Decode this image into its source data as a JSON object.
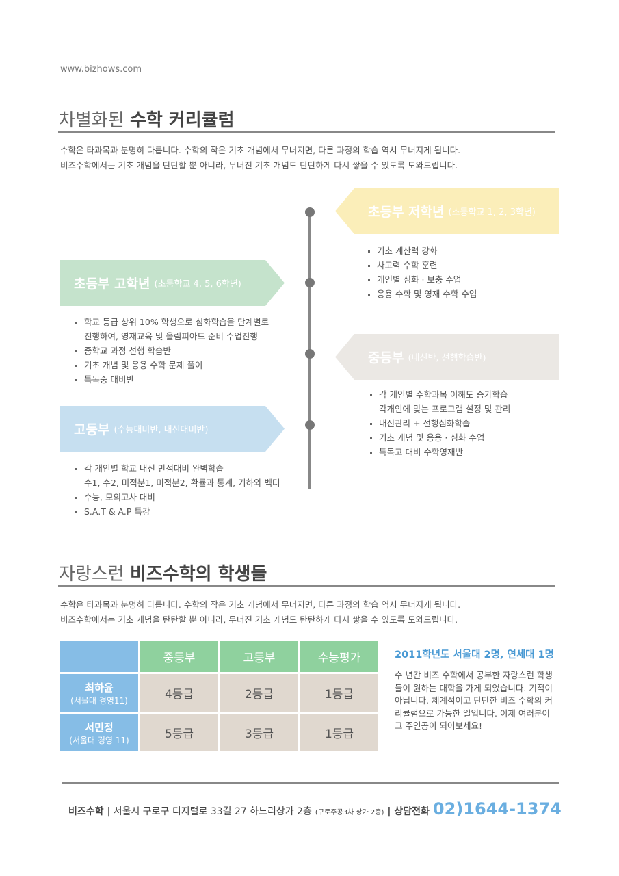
{
  "header": {
    "url": "www.bizhows.com"
  },
  "curriculum": {
    "title_light": "차별화된",
    "title_bold": "수학 커리큘럼",
    "intro": [
      "수학은 타과목과 분명히 다릅니다. 수학의 작은 기초 개념에서 무너지면, 다른 과정의 학습 역시 무너지게 됩니다.",
      "비즈수학에서는 기초 개념을 탄탄할 뿐 아니라, 무너진 기초 개념도 탄탄하게 다시 쌓을 수 있도록 도와드립니다."
    ],
    "stages": [
      {
        "name": "초등부 저학년",
        "detail": "(초등학교 1, 2, 3학년)",
        "items": [
          [
            "기초 계산력 강화"
          ],
          [
            "사고력 수학 훈련"
          ],
          [
            "개인별 심화 · 보충 수업"
          ],
          [
            "응용 수학 및 영재 수학 수업"
          ]
        ]
      },
      {
        "name": "초등부 고학년",
        "detail": "(초등학교 4, 5, 6학년)",
        "items": [
          [
            "학교 등급 상위 10% 학생으로 심화학습을 단계별로",
            "진행하여, 영재교육 및 올림피아드 준비 수업진행"
          ],
          [
            "중학교 과정 선행 학습반"
          ],
          [
            "기초 개념 및 응용 수학 문제 풀이"
          ],
          [
            "특목중 대비반"
          ]
        ]
      },
      {
        "name": "중등부",
        "detail": "(내신반, 선행학습반)",
        "items": [
          [
            "각 개인별 수학과목 이해도 증가학습",
            "각개인에 맞는 프로그램 설정 및 관리"
          ],
          [
            "내신관리 + 선행심화학습"
          ],
          [
            "기초 개념 및 응용 · 심화 수업"
          ],
          [
            "특목고 대비 수학영재반"
          ]
        ]
      },
      {
        "name": "고등부",
        "detail": "(수능대비반, 내신대비반)",
        "items": [
          [
            "각 개인별 학교 내신 만점대비 완벽학습",
            "수1, 수2, 미적분1, 미적분2, 확률과 통계, 기하와 벡터"
          ],
          [
            "수능, 모의고사 대비"
          ],
          [
            "S.A.T & A.P 특강"
          ]
        ]
      }
    ]
  },
  "students": {
    "title_light": "자랑스런",
    "title_bold": "비즈수학의 학생들",
    "intro": [
      "수학은 타과목과 분명히 다릅니다. 수학의 작은 기초 개념에서 무너지면, 다른 과정의 학습 역시 무너지게 됩니다.",
      "비즈수학에서는 기초 개념을 탄탄할 뿐 아니라, 무너진 기초 개념도 탄탄하게 다시 쌓을 수 있도록 도와드립니다."
    ],
    "table": {
      "header": [
        "중등부",
        "고등부",
        "수능평가"
      ],
      "rows": [
        {
          "name": "최하윤",
          "school": "(서울대 경영11)",
          "grades": [
            "4등급",
            "2등급",
            "1등급"
          ]
        },
        {
          "name": "서민정",
          "school": "(서울대 경영 11)",
          "grades": [
            "5등급",
            "3등급",
            "1등급"
          ]
        }
      ]
    },
    "achievement": {
      "title": "2011학년도 서울대 2명, 연세대 1명",
      "lines": [
        "수 년간 비즈 수학에서 공부한 자랑스런 학생",
        "들이 원하는 대학을 가게 되었습니다. 기적이",
        "아닙니다. 체계적이고 탄탄한 비즈 수학의 커",
        "리큘럼으로 가능한 일입니다. 이제 여러분이",
        "그 주인공이 되어보세요!"
      ]
    }
  },
  "footer": {
    "brand": "비즈수학",
    "address": "| 서울시 구로구 디지털로 33길 27 하느리상가 2층",
    "address_note": "(구로주공3차 상가 2층)",
    "phone_label": "| 상담전화",
    "phone": "02)1644-1374"
  }
}
